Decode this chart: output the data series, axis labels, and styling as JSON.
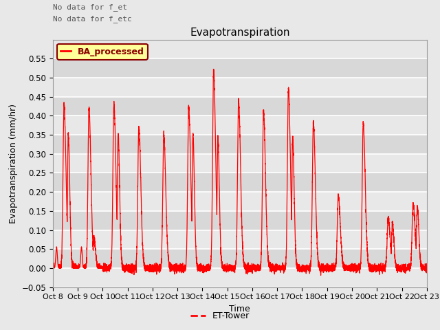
{
  "title": "Evapotranspiration",
  "ylabel": "Evapotranspiration (mm/hr)",
  "xlabel": "Time",
  "text_line1": "No data for f_et",
  "text_line2": "No data for f_etc",
  "inner_legend_label": "BA_processed",
  "bottom_legend_label": "ET-Tower",
  "legend_box_color": "#ffff99",
  "legend_box_edge": "#8B0000",
  "line_color": "red",
  "background_color": "#e8e8e8",
  "plot_bg_color": "#e8e8e8",
  "band_color1": "#e8e8e8",
  "band_color2": "#d8d8d8",
  "ylim": [
    -0.05,
    0.6
  ],
  "yticks": [
    -0.05,
    0.0,
    0.05,
    0.1,
    0.15,
    0.2,
    0.25,
    0.3,
    0.35,
    0.4,
    0.45,
    0.5,
    0.55
  ],
  "start_day": 8,
  "end_day": 23,
  "title_fontsize": 11,
  "axis_fontsize": 9,
  "tick_fontsize": 8.5
}
